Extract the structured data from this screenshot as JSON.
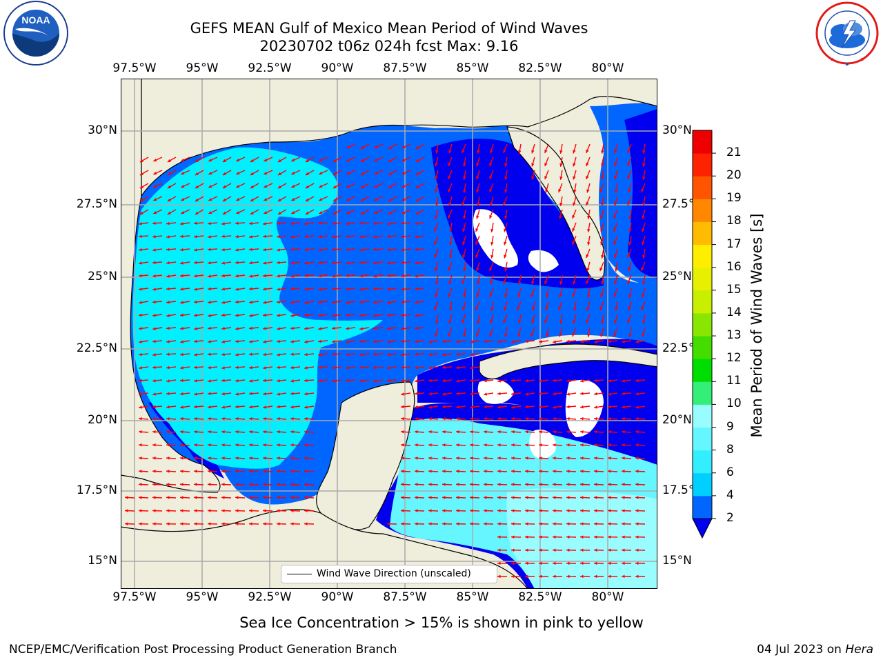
{
  "title": {
    "line1": "GEFS MEAN Gulf of Mexico Mean Period of Wind Waves",
    "line2": "20230702 t06z 024h fcst   Max: 9.16"
  },
  "map": {
    "lon_labels": [
      "97.5°W",
      "95°W",
      "92.5°W",
      "90°W",
      "87.5°W",
      "85°W",
      "82.5°W",
      "80°W"
    ],
    "lat_labels": [
      "30°N",
      "27.5°N",
      "25°N",
      "22.5°N",
      "20°N",
      "17.5°N",
      "15°N"
    ],
    "legend_label": "Wind Wave Direction (unscaled)",
    "land_color": "#efeddc",
    "arrow_color": "#ff0000"
  },
  "colorbar": {
    "label": "Mean Period of Wind Waves [s]",
    "ticks": [
      "2",
      "4",
      "6",
      "8",
      "9",
      "10",
      "11",
      "12",
      "13",
      "14",
      "15",
      "16",
      "17",
      "18",
      "19",
      "20",
      "21"
    ],
    "colors": [
      "#0066ff",
      "#00d0ff",
      "#33eeff",
      "#66f6ff",
      "#99fcff",
      "#33ee77",
      "#00dd00",
      "#44dd00",
      "#88e600",
      "#c8ee00",
      "#e6f000",
      "#ffee00",
      "#ffbb00",
      "#ff8800",
      "#ff5500",
      "#ff2200",
      "#ee0000"
    ],
    "extend_color": "#0000ee"
  },
  "subtitle": "Sea Ice Concentration > 15% is shown in pink to yellow",
  "footer": {
    "left": "NCEP/EMC/Verification Post Processing Product Generation Branch",
    "right_date": "04 Jul 2023 on ",
    "right_machine": "Hera"
  },
  "logos": {
    "noaa_text": "NOAA",
    "noaa_ring_text": "NATIONAL OCEANIC AND ATMOSPHERIC ADMINISTRATION · U.S. DEPARTMENT OF COMMERCE",
    "nws_ring_text": "NATIONAL WEATHER SERVICE"
  }
}
